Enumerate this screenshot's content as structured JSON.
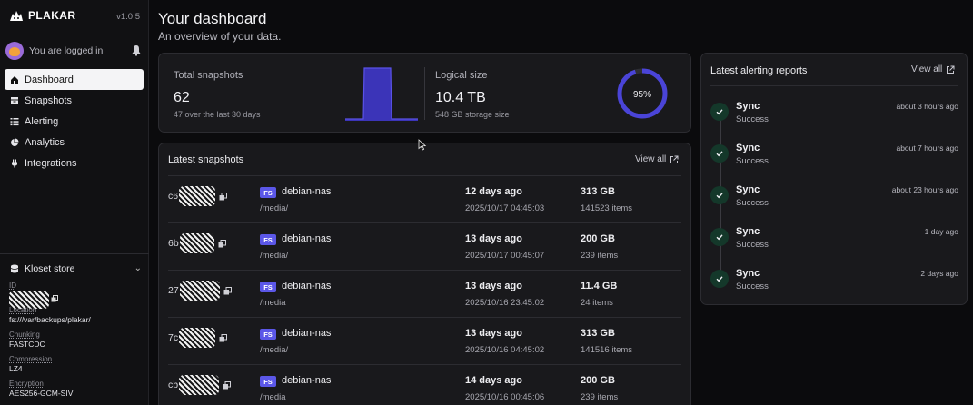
{
  "sidebar": {
    "brand": "PLAKAR",
    "version": "v1.0.5",
    "user_label": "You are logged in",
    "nav": [
      {
        "label": "Dashboard",
        "icon": "home-icon",
        "active": true
      },
      {
        "label": "Snapshots",
        "icon": "snapshots-icon",
        "active": false
      },
      {
        "label": "Alerting",
        "icon": "list-icon",
        "active": false
      },
      {
        "label": "Analytics",
        "icon": "pie-icon",
        "active": false
      },
      {
        "label": "Integrations",
        "icon": "plug-icon",
        "active": false
      }
    ],
    "store": {
      "title": "Kloset store",
      "id_label": "ID",
      "location_label": "Location",
      "location": "fs:///var/backups/plakar/",
      "chunking_label": "Chunking",
      "chunking": "FASTCDC",
      "compression_label": "Compression",
      "compression": "LZ4",
      "encryption_label": "Encryption",
      "encryption": "AES256-GCM-SIV"
    }
  },
  "header": {
    "title": "Your dashboard",
    "subtitle": "An overview of your data."
  },
  "stats": {
    "total_label": "Total snapshots",
    "total_value": "62",
    "total_sub": "47 over the last 30 days",
    "logical_label": "Logical size",
    "logical_value": "10.4 TB",
    "logical_sub": "548 GB storage size",
    "ratio_label": "95%",
    "ratio": 0.95,
    "accent": "#4a44d8"
  },
  "snapshots": {
    "title": "Latest snapshots",
    "view_all": "View all",
    "rows": [
      {
        "id": "c6",
        "type": "FS",
        "host": "debian-nas",
        "path": "/media/",
        "ago": "12 days ago",
        "date": "2025/10/17 04:45:03",
        "size": "313 GB",
        "items": "141523 items"
      },
      {
        "id": "6b",
        "type": "FS",
        "host": "debian-nas",
        "path": "/media/",
        "ago": "13 days ago",
        "date": "2025/10/17 00:45:07",
        "size": "200 GB",
        "items": "239 items"
      },
      {
        "id": "27",
        "type": "FS",
        "host": "debian-nas",
        "path": "/media",
        "ago": "13 days ago",
        "date": "2025/10/16 23:45:02",
        "size": "11.4 GB",
        "items": "24 items"
      },
      {
        "id": "7c",
        "type": "FS",
        "host": "debian-nas",
        "path": "/media/",
        "ago": "13 days ago",
        "date": "2025/10/16 04:45:02",
        "size": "313 GB",
        "items": "141516 items"
      },
      {
        "id": "cb",
        "type": "FS",
        "host": "debian-nas",
        "path": "/media",
        "ago": "14 days ago",
        "date": "2025/10/16 00:45:06",
        "size": "200 GB",
        "items": "239 items"
      }
    ]
  },
  "alerts": {
    "title": "Latest alerting reports",
    "view_all": "View all",
    "items": [
      {
        "title": "Sync",
        "status": "Success",
        "when": "about 3 hours ago"
      },
      {
        "title": "Sync",
        "status": "Success",
        "when": "about 7 hours ago"
      },
      {
        "title": "Sync",
        "status": "Success",
        "when": "about 23 hours ago"
      },
      {
        "title": "Sync",
        "status": "Success",
        "when": "1 day ago"
      },
      {
        "title": "Sync",
        "status": "Success",
        "when": "2 days ago"
      }
    ]
  }
}
